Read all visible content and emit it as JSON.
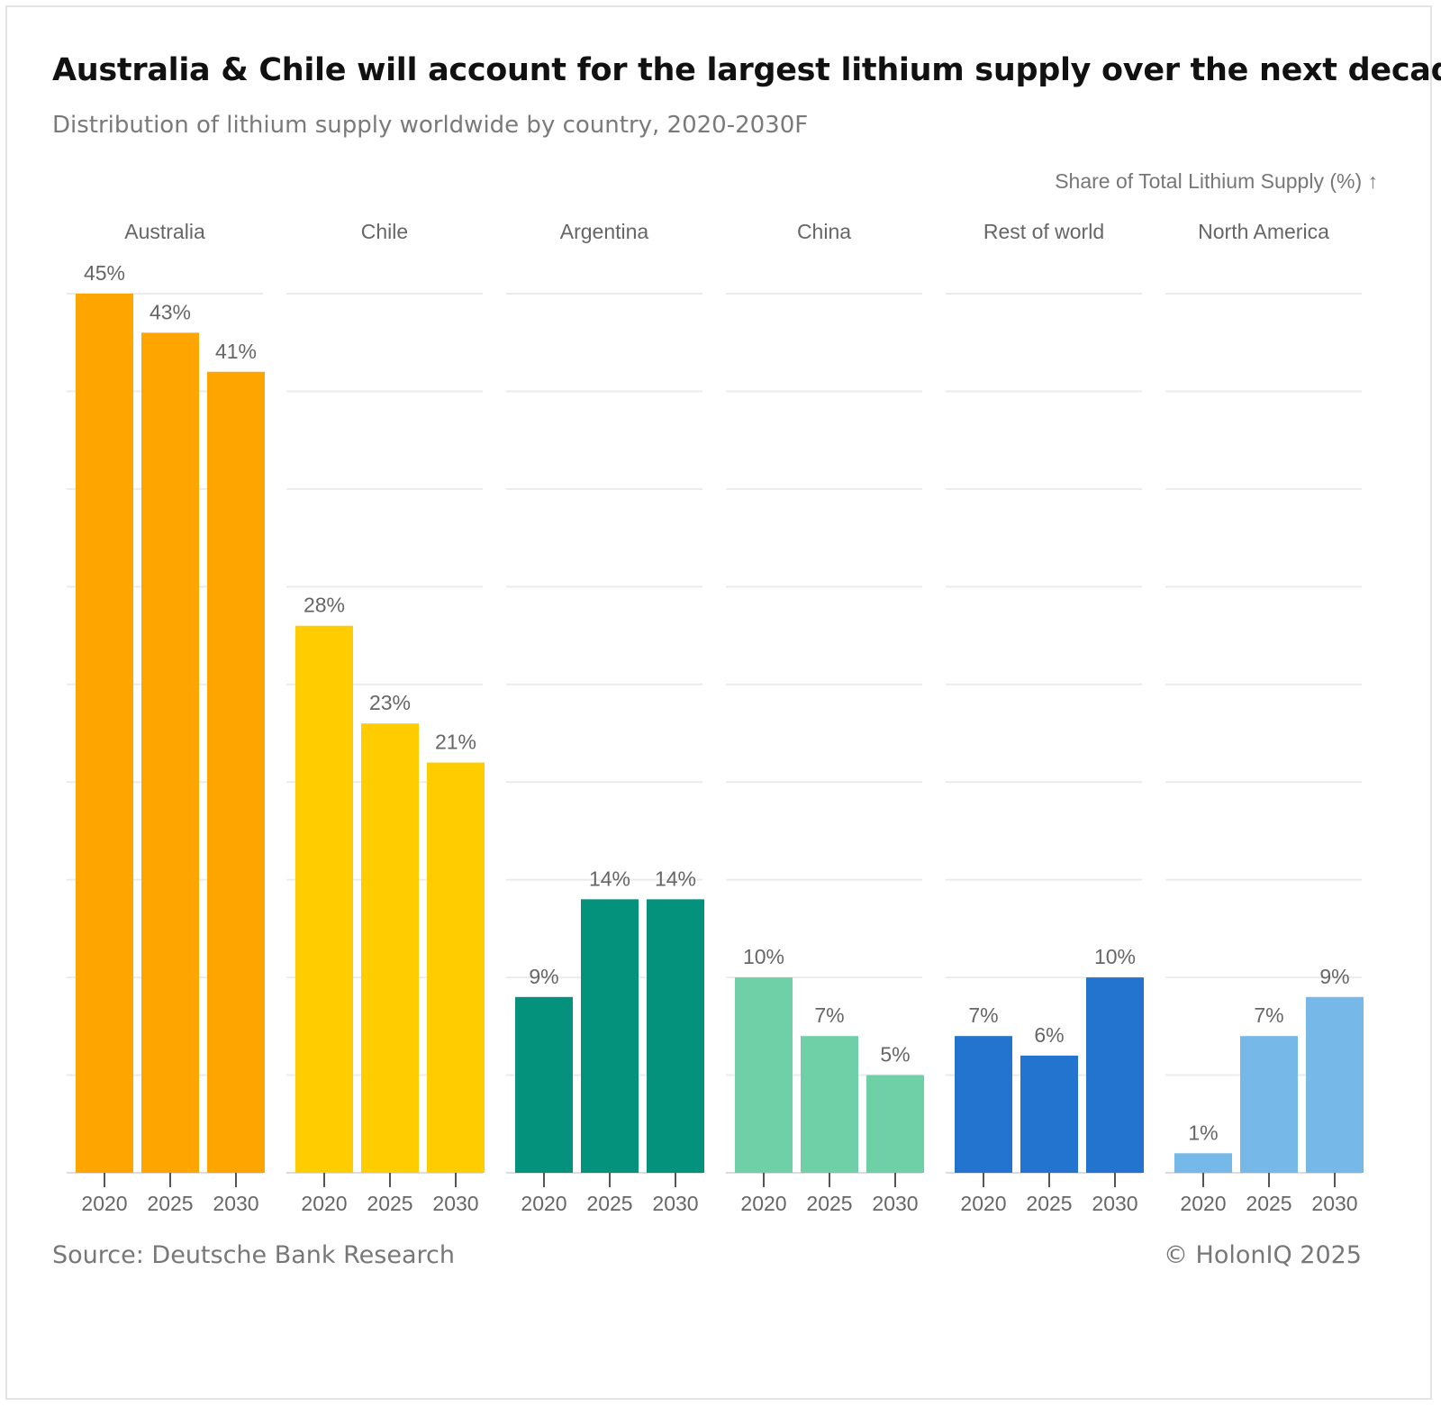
{
  "header": {
    "title": "Australia & Chile will account for the largest lithium supply over the next decade",
    "subtitle": "Distribution of lithium supply worldwide by country, 2020-2030F"
  },
  "footer": {
    "source": "Source: Deutsche Bank Research",
    "copyright": "© HolonIQ 2025"
  },
  "chart_data": {
    "type": "bar",
    "ylabel": "Share of Total Lithium Supply (%) ↑",
    "ylim": [
      0,
      45
    ],
    "grid": true,
    "value_suffix": "%",
    "categories": [
      "2020",
      "2025",
      "2030"
    ],
    "panels": [
      {
        "name": "Australia",
        "color": "#FFA500",
        "values": [
          45,
          43,
          41
        ]
      },
      {
        "name": "Chile",
        "color": "#FFCC00",
        "values": [
          28,
          23,
          21
        ]
      },
      {
        "name": "Argentina",
        "color": "#05927C",
        "values": [
          9,
          14,
          14
        ]
      },
      {
        "name": "China",
        "color": "#6FCFA6",
        "values": [
          10,
          7,
          5
        ]
      },
      {
        "name": "Rest of world",
        "color": "#2274CE",
        "values": [
          7,
          6,
          10
        ]
      },
      {
        "name": "North America",
        "color": "#76B8E8",
        "values": [
          1,
          7,
          9
        ]
      }
    ]
  }
}
